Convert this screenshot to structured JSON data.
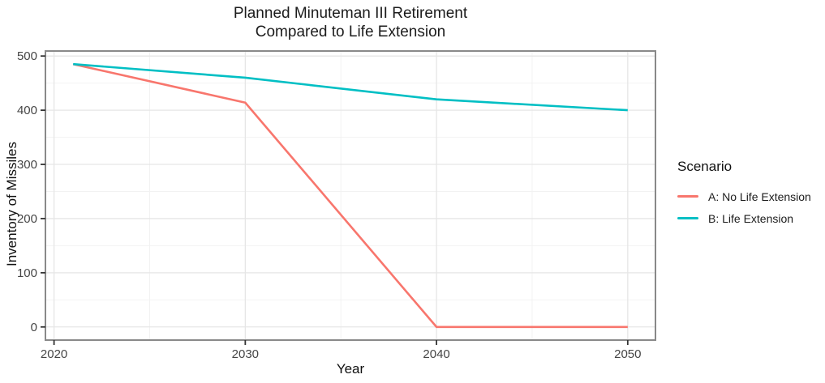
{
  "chart_data": {
    "type": "line",
    "title_lines": [
      "Planned Minuteman III Retirement",
      "Compared to Life Extension"
    ],
    "xlabel": "Year",
    "ylabel": "Inventory of Missiles",
    "x_ticks": [
      2020,
      2030,
      2040,
      2050
    ],
    "x_minor_ticks": [
      2025,
      2035,
      2045
    ],
    "y_ticks": [
      0,
      100,
      200,
      300,
      400,
      500
    ],
    "y_minor_ticks": [
      50,
      150,
      250,
      350,
      450
    ],
    "xlim": [
      2019.55,
      2051.45
    ],
    "ylim": [
      -24.25,
      509.25
    ],
    "grid": true,
    "legend": {
      "title": "Scenario",
      "position": "right"
    },
    "series": [
      {
        "name": "A: No Life Extension",
        "color": "#F8766D",
        "points": [
          [
            2021,
            485
          ],
          [
            2030,
            414
          ],
          [
            2040,
            0
          ],
          [
            2050,
            0
          ]
        ]
      },
      {
        "name": "B: Life Extension",
        "color": "#00BFC4",
        "points": [
          [
            2021,
            485
          ],
          [
            2030,
            460
          ],
          [
            2040,
            420
          ],
          [
            2050,
            400
          ]
        ]
      }
    ]
  },
  "colors": {
    "series_a": "#F8766D",
    "series_b": "#00BFC4",
    "panel_border": "#898989",
    "grid_major": "#e6e6e6",
    "grid_minor": "#f2f2f2",
    "tick_mark": "#333333",
    "tick_text": "#454545"
  }
}
